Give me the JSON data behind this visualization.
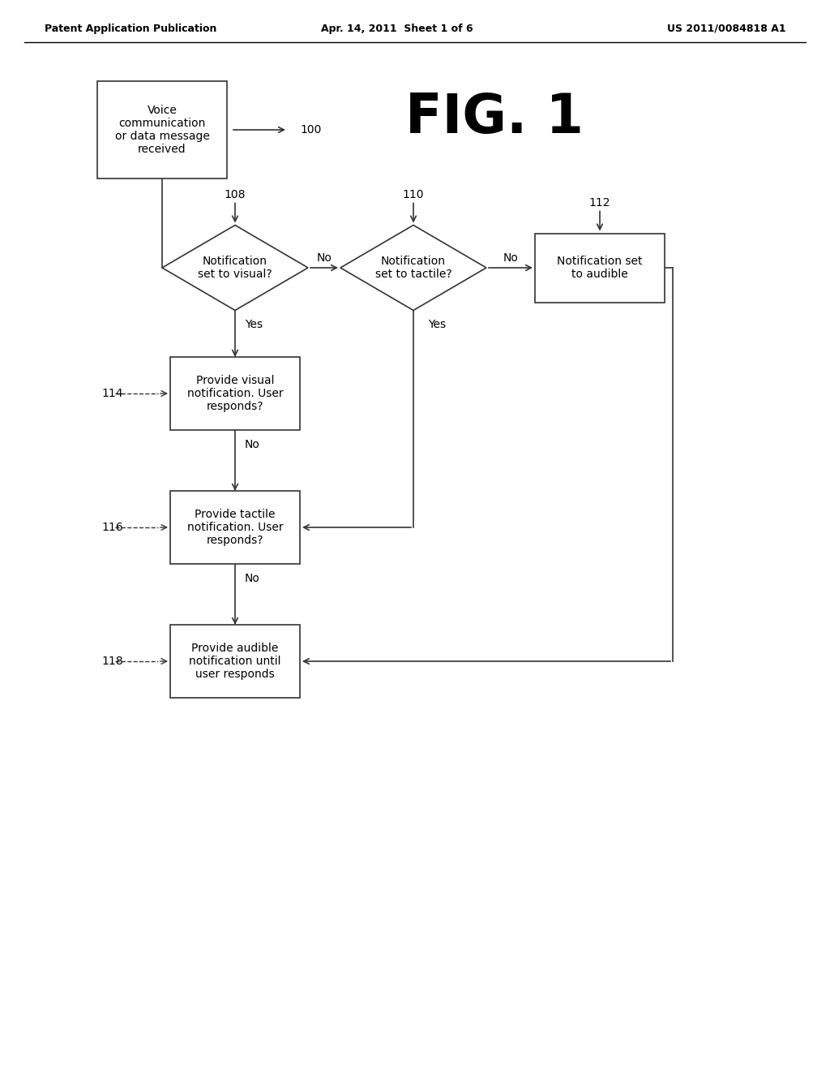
{
  "bg_color": "#ffffff",
  "header_left": "Patent Application Publication",
  "header_center": "Apr. 14, 2011  Sheet 1 of 6",
  "header_right": "US 2011/0084818 A1",
  "fig_label": "FIG. 1",
  "start_box_text": "Voice\ncommunication\nor data message\nreceived",
  "ref100": "100",
  "diamond1_text": "Notification\nset to visual?",
  "ref108": "108",
  "diamond2_text": "Notification\nset to tactile?",
  "ref110": "110",
  "box_audible_set_text": "Notification set\nto audible",
  "ref112": "112",
  "box_visual_text": "Provide visual\nnotification. User\nresponds?",
  "ref114": "114",
  "box_tactile_text": "Provide tactile\nnotification. User\nresponds?",
  "ref116": "116",
  "box_audible_text": "Provide audible\nnotification until\nuser responds",
  "ref118": "118",
  "label_no": "No",
  "label_yes": "Yes"
}
